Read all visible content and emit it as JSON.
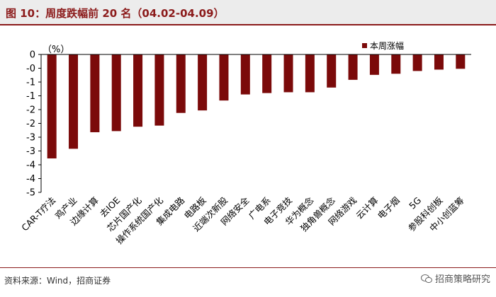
{
  "title": "图 10：周度跌幅前 20 名（04.02-04.09）",
  "source": "资料来源：Wind，招商证券",
  "watermark": "招商策略研究",
  "colors": {
    "bar": "#7b0a0a",
    "accent": "#8b1a1a",
    "header_bg": "#ececec"
  },
  "chart_data": {
    "type": "bar",
    "title": "",
    "unit_label": "（%）",
    "xlabel": "",
    "ylabel": "",
    "ylim": [
      -5,
      0
    ],
    "yticks": [
      0,
      -0.5,
      -1,
      -1.5,
      -2,
      -2.5,
      -3,
      -3.5,
      -4,
      -4.5,
      -5
    ],
    "ytick_labels": [
      "0",
      "-0",
      "-1",
      "-1",
      "-2",
      "-2",
      "-3",
      "-3",
      "-4",
      "-4",
      "-5"
    ],
    "grid": false,
    "legend_position": "top-right",
    "categories": [
      "CAR-T疗法",
      "鸡产业",
      "边缘计算",
      "去IOE",
      "芯片国产化",
      "操作系统国产化",
      "集成电路",
      "电路板",
      "近端次新股",
      "网络安全",
      "广电系",
      "电子竞技",
      "华为概念",
      "独角兽概念",
      "网络游戏",
      "云计算",
      "电子烟",
      "5G",
      "参股科创板",
      "中小创蓝筹"
    ],
    "series": [
      {
        "name": "本周涨幅",
        "values": [
          -3.77,
          -3.42,
          -2.82,
          -2.78,
          -2.62,
          -2.58,
          -2.12,
          -2.03,
          -1.67,
          -1.45,
          -1.4,
          -1.37,
          -1.37,
          -1.2,
          -0.92,
          -0.74,
          -0.7,
          -0.6,
          -0.55,
          -0.52
        ]
      }
    ]
  }
}
